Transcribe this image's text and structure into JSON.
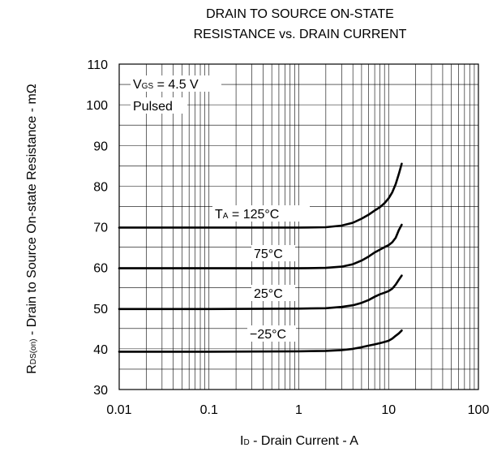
{
  "chart_data": {
    "type": "line",
    "title_line1": "DRAIN TO SOURCE ON-STATE",
    "title_line2": "RESISTANCE vs. DRAIN CURRENT",
    "xlabel": {
      "main": "I",
      "sub": "D",
      "rest": " - Drain Current - A"
    },
    "ylabel": {
      "main": "R",
      "sub": "DS(on)",
      "rest": " - Drain to Source On-state Resistance - mΩ"
    },
    "x_scale": "log",
    "xlim": [
      0.01,
      100
    ],
    "ylim": [
      30,
      110
    ],
    "x_ticks": [
      "0.01",
      "0.1",
      "1",
      "10",
      "100"
    ],
    "y_ticks": [
      "30",
      "40",
      "50",
      "60",
      "70",
      "80",
      "90",
      "100",
      "110"
    ],
    "grid": true,
    "conditions": {
      "vgs": {
        "main": "V",
        "sub": "GS",
        "rest": " = 4.5 V"
      },
      "mode": "Pulsed"
    },
    "series": [
      {
        "name": {
          "main": "T",
          "sub": "A",
          "rest": " = 125°C"
        },
        "x": [
          0.01,
          0.1,
          1,
          2,
          3,
          4,
          5,
          6,
          7,
          8,
          9,
          10,
          11,
          12,
          13,
          14
        ],
        "y": [
          69.8,
          69.8,
          69.8,
          69.9,
          70.3,
          71.0,
          72.0,
          73.0,
          74.0,
          74.8,
          75.8,
          77.0,
          78.5,
          80.5,
          83.0,
          85.5
        ]
      },
      {
        "name": {
          "main": "",
          "sub": "",
          "rest": "75°C"
        },
        "x": [
          0.01,
          0.1,
          1,
          2,
          3,
          4,
          5,
          6,
          7,
          8,
          9,
          10,
          11,
          12,
          13,
          14
        ],
        "y": [
          59.8,
          59.8,
          59.8,
          59.9,
          60.2,
          60.8,
          61.7,
          62.7,
          63.7,
          64.4,
          65.0,
          65.5,
          66.2,
          67.3,
          69.2,
          70.5
        ]
      },
      {
        "name": {
          "main": "",
          "sub": "",
          "rest": "25°C"
        },
        "x": [
          0.01,
          0.1,
          1,
          2,
          3,
          4,
          5,
          6,
          7,
          8,
          9,
          10,
          11,
          12,
          13,
          14
        ],
        "y": [
          49.8,
          49.8,
          49.9,
          50.0,
          50.3,
          50.7,
          51.3,
          52.0,
          52.8,
          53.4,
          53.8,
          54.2,
          54.8,
          55.8,
          57.0,
          58.0
        ]
      },
      {
        "name": {
          "main": "",
          "sub": "",
          "rest": "−25°C"
        },
        "x": [
          0.01,
          0.1,
          1,
          2,
          3,
          4,
          5,
          6,
          7,
          8,
          9,
          10,
          11,
          12,
          13,
          14
        ],
        "y": [
          39.3,
          39.3,
          39.4,
          39.5,
          39.7,
          40.0,
          40.4,
          40.8,
          41.1,
          41.4,
          41.7,
          42.0,
          42.5,
          43.2,
          43.8,
          44.5
        ]
      }
    ]
  }
}
